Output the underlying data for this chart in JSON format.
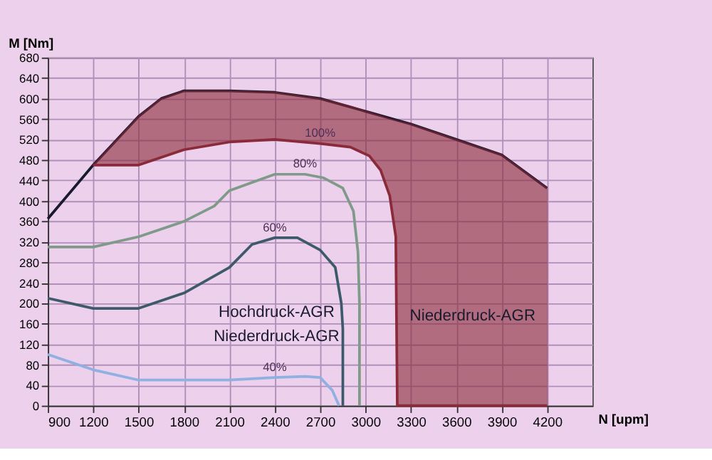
{
  "chart_data": {
    "type": "line",
    "xlabel": "N [upm]",
    "ylabel": "M [Nm]",
    "xlim": [
      900,
      4500
    ],
    "xticks": [
      900,
      1200,
      1500,
      1800,
      2100,
      2400,
      2700,
      3000,
      3300,
      3600,
      3900,
      4200
    ],
    "ylim": [
      0,
      680
    ],
    "yticks": [
      0,
      40,
      80,
      120,
      160,
      200,
      240,
      280,
      320,
      360,
      400,
      440,
      480,
      520,
      560,
      600,
      640,
      680
    ],
    "grid": true,
    "marker": "none",
    "line_style": "solid",
    "series": [
      {
        "color": "#1a1a2e",
        "x": [
          900,
          1200,
          1500,
          1650,
          1800,
          2100,
          2400,
          2700,
          3000,
          3300,
          3600,
          3900,
          4200
        ],
        "values": [
          365,
          470,
          565,
          600,
          615,
          615,
          612,
          600,
          575,
          550,
          520,
          490,
          425
        ]
      },
      {
        "color": "#8b2a3a",
        "x": [
          1200,
          1500,
          1650,
          1800,
          2100,
          2400,
          2700,
          2900,
          3025,
          3100,
          3160,
          3200,
          3210,
          3300,
          3600,
          3900,
          4200
        ],
        "values": [
          470,
          470,
          485,
          500,
          515,
          520,
          512,
          505,
          488,
          460,
          410,
          330,
          0,
          0,
          0,
          0,
          0
        ],
        "lower": [
          470,
          470,
          485,
          500,
          515,
          520,
          512,
          505,
          488,
          460,
          410,
          330,
          0,
          0,
          0,
          0,
          0
        ],
        "upper": [
          470,
          565,
          600,
          615,
          615,
          612,
          600,
          585,
          573,
          566,
          560,
          557,
          556,
          550,
          520,
          490,
          425
        ]
      },
      {
        "color": "#7f9a88",
        "x": [
          900,
          1200,
          1500,
          1800,
          2000,
          2100,
          2400,
          2600,
          2723,
          2850,
          2920,
          2950,
          2960,
          2960
        ],
        "values": [
          310,
          310,
          330,
          360,
          390,
          420,
          452,
          452,
          445,
          425,
          380,
          300,
          200,
          0
        ]
      },
      {
        "color": "#3e5a6a",
        "x": [
          900,
          1200,
          1500,
          1800,
          2100,
          2250,
          2400,
          2550,
          2700,
          2800,
          2840,
          2850,
          2850
        ],
        "values": [
          210,
          190,
          190,
          220,
          270,
          315,
          328,
          328,
          304,
          270,
          200,
          150,
          0
        ]
      },
      {
        "color": "#8fb0e0",
        "x": [
          900,
          1200,
          1500,
          2100,
          2400,
          2600,
          2700,
          2780,
          2825
        ],
        "values": [
          100,
          70,
          50,
          50,
          55,
          57,
          55,
          30,
          0
        ]
      }
    ],
    "annotations": [
      {
        "text": "100%",
        "x": 2700,
        "y": 512
      },
      {
        "text": "80%",
        "x": 2600,
        "y": 452
      },
      {
        "text": "60%",
        "x": 2400,
        "y": 328
      },
      {
        "text": "40%",
        "x": 2400,
        "y": 55
      },
      "Hochdruck-AGR",
      "Niederdruck-AGR",
      "Niederdruck-AGR"
    ]
  }
}
